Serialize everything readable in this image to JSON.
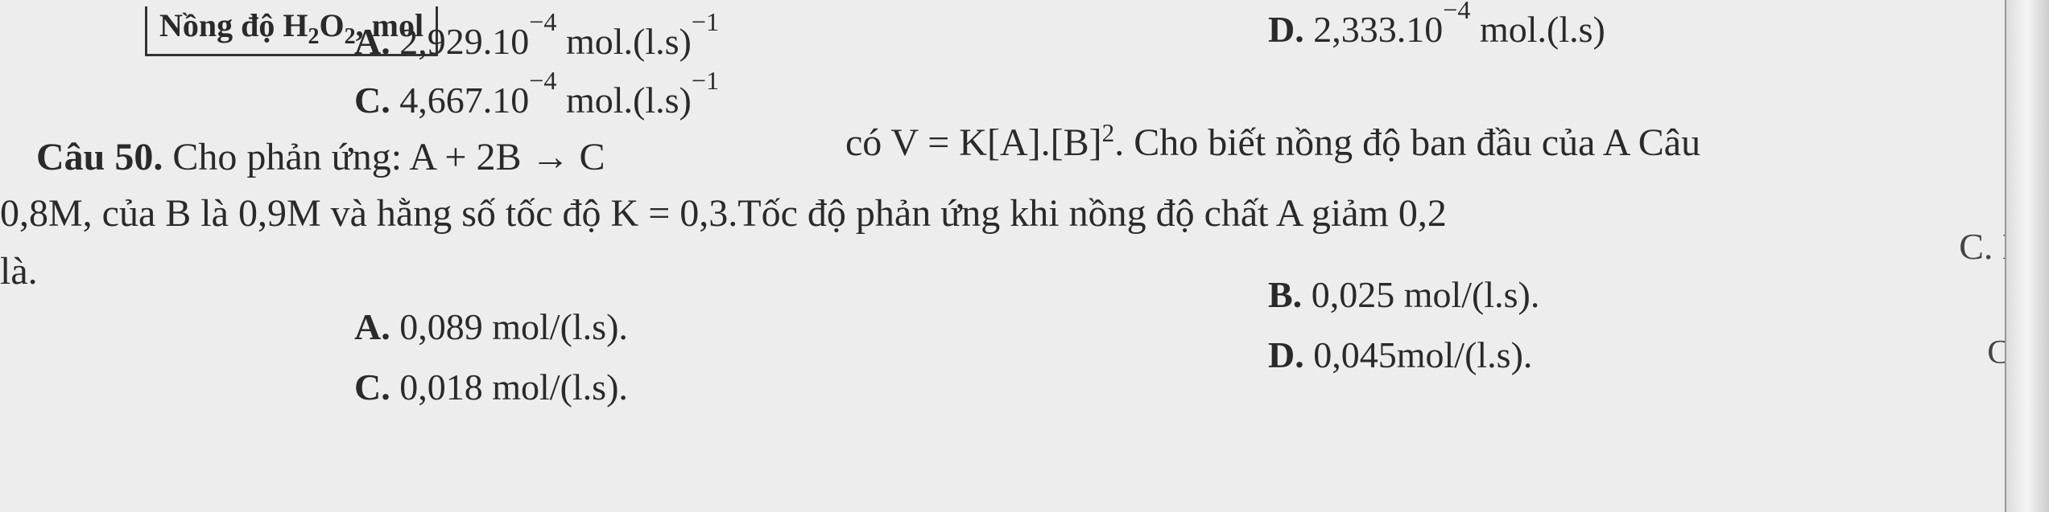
{
  "page": {
    "background_color": "#ededed",
    "text_color": "#2a2a2a",
    "font_family": "Times New Roman",
    "base_fontsize": 46
  },
  "header_fragment": "Nồng độ H₂O₂, mol",
  "q49": {
    "option_a": {
      "label": "A.",
      "text": "2,929.10⁻⁴ mol.(l.s)⁻¹"
    },
    "option_c": {
      "label": "C.",
      "text": "4,667.10⁻⁴ mol.(l.s)⁻¹"
    },
    "option_d": {
      "label": "D.",
      "text": "2,333.10⁻⁴ mol.(l.s)"
    }
  },
  "q50": {
    "label": "Câu 50.",
    "text_part1": "có V = K[A].[B]². Cho biết nồng độ ban đầu của A Câu",
    "text_part2": "Cho phản ứng: A + 2B → C",
    "text_part3": "0,8M, của B là 0,9M và hằng số tốc độ K = 0,3.Tốc độ phản ứng khi nồng độ chất A giảm 0,2",
    "text_part4": "là.",
    "option_a": {
      "label": "A.",
      "text": "0,089 mol/(l.s)."
    },
    "option_b": {
      "label": "B.",
      "text": "0,025 mol/(l.s)."
    },
    "option_c": {
      "label": "C.",
      "text": "0,018 mol/(l.s)."
    },
    "option_d": {
      "label": "D.",
      "text": "0,045mol/(l.s)."
    }
  },
  "margin": {
    "c": "C. E",
    "ca": "Câ",
    "one": "1"
  }
}
